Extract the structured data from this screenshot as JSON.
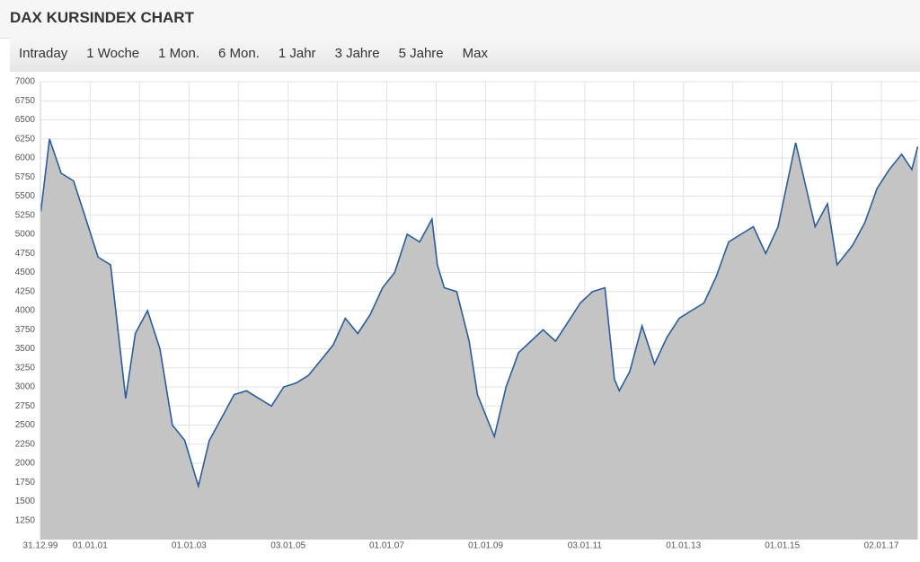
{
  "header": {
    "title": "DAX KURSINDEX CHART"
  },
  "tabs": [
    "Intraday",
    "1 Woche",
    "1 Mon.",
    "6 Mon.",
    "1 Jahr",
    "3 Jahre",
    "5 Jahre",
    "Max"
  ],
  "chart_data": {
    "type": "area",
    "x": [
      "2000-01-03",
      "2000-03-07",
      "2000-06-01",
      "2000-09-01",
      "2000-12-01",
      "2001-03-01",
      "2001-06-01",
      "2001-09-21",
      "2001-12-01",
      "2002-03-01",
      "2002-06-01",
      "2002-09-01",
      "2002-12-01",
      "2003-03-12",
      "2003-06-01",
      "2003-09-01",
      "2003-12-01",
      "2004-03-01",
      "2004-06-01",
      "2004-09-01",
      "2004-12-01",
      "2005-03-01",
      "2005-06-01",
      "2005-09-01",
      "2005-12-01",
      "2006-03-01",
      "2006-06-01",
      "2006-09-01",
      "2006-12-01",
      "2007-03-01",
      "2007-06-01",
      "2007-09-01",
      "2007-12-01",
      "2008-01-10",
      "2008-03-01",
      "2008-06-01",
      "2008-09-01",
      "2008-11-01",
      "2009-03-06",
      "2009-06-01",
      "2009-09-01",
      "2009-12-01",
      "2010-03-01",
      "2010-06-01",
      "2010-09-01",
      "2010-12-01",
      "2011-03-01",
      "2011-06-01",
      "2011-08-10",
      "2011-09-15",
      "2011-12-01",
      "2012-03-01",
      "2012-06-01",
      "2012-09-01",
      "2012-12-01",
      "2013-03-01",
      "2013-06-01",
      "2013-09-01",
      "2013-12-01",
      "2014-03-01",
      "2014-06-01",
      "2014-09-01",
      "2014-12-01",
      "2015-04-10",
      "2015-06-01",
      "2015-09-01",
      "2015-12-01",
      "2016-02-10",
      "2016-06-01",
      "2016-09-01",
      "2016-12-01",
      "2017-03-01",
      "2017-06-01",
      "2017-08-15",
      "2017-09-28"
    ],
    "series": [
      {
        "name": "DAX Kursindex",
        "color": "#2a5d9a",
        "fill": "#c4c4c4",
        "values": [
          5300,
          6250,
          5800,
          5700,
          5200,
          4700,
          4600,
          2850,
          3700,
          4000,
          3500,
          2500,
          2300,
          1700,
          2300,
          2600,
          2900,
          2950,
          2850,
          2750,
          3000,
          3050,
          3150,
          3350,
          3550,
          3900,
          3700,
          3950,
          4300,
          4500,
          5000,
          4900,
          5200,
          4600,
          4300,
          4250,
          3600,
          2900,
          2350,
          3000,
          3450,
          3600,
          3750,
          3600,
          3850,
          4100,
          4250,
          4300,
          3100,
          2950,
          3200,
          3800,
          3300,
          3650,
          3900,
          4000,
          4100,
          4450,
          4900,
          5000,
          5100,
          4750,
          5100,
          6200,
          5800,
          5100,
          5400,
          4600,
          4850,
          5150,
          5600,
          5850,
          6050,
          5850,
          6150
        ]
      }
    ],
    "xlim": [
      "1999-12-31",
      "2017-10-01"
    ],
    "xticks": [
      {
        "value": "1999-12-31",
        "label": "31.12.99"
      },
      {
        "value": "2001-01-01",
        "label": "01.01.01"
      },
      {
        "value": "2002-01-01",
        "label": null
      },
      {
        "value": "2003-01-01",
        "label": "01.01.03"
      },
      {
        "value": "2004-01-01",
        "label": null
      },
      {
        "value": "2005-01-03",
        "label": "03.01.05"
      },
      {
        "value": "2006-01-01",
        "label": null
      },
      {
        "value": "2007-01-01",
        "label": "01.01.07"
      },
      {
        "value": "2008-01-01",
        "label": null
      },
      {
        "value": "2009-01-01",
        "label": "01.01.09"
      },
      {
        "value": "2010-01-01",
        "label": null
      },
      {
        "value": "2011-01-03",
        "label": "03.01.11"
      },
      {
        "value": "2012-01-01",
        "label": null
      },
      {
        "value": "2013-01-01",
        "label": "01.01.13"
      },
      {
        "value": "2014-01-01",
        "label": null
      },
      {
        "value": "2015-01-01",
        "label": "01.01.15"
      },
      {
        "value": "2016-01-01",
        "label": null
      },
      {
        "value": "2017-01-02",
        "label": "02.01.17"
      }
    ],
    "ylim": [
      1000,
      7000
    ],
    "yticks": [
      1250,
      1500,
      1750,
      2000,
      2250,
      2500,
      2750,
      3000,
      3250,
      3500,
      3750,
      4000,
      4250,
      4500,
      4750,
      5000,
      5250,
      5500,
      5750,
      6000,
      6250,
      6500,
      6750,
      7000
    ],
    "grid": true
  }
}
